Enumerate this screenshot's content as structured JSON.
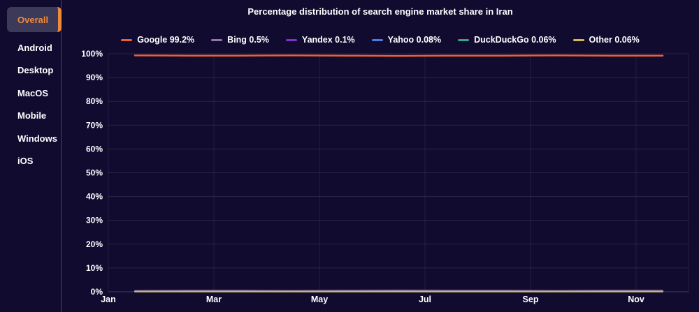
{
  "sidebar": {
    "items": [
      {
        "label": "Overall",
        "active": true
      },
      {
        "label": "Android",
        "active": false
      },
      {
        "label": "Desktop",
        "active": false
      },
      {
        "label": "MacOS",
        "active": false
      },
      {
        "label": "Mobile",
        "active": false
      },
      {
        "label": "Windows",
        "active": false
      },
      {
        "label": "iOS",
        "active": false
      }
    ]
  },
  "theme": {
    "background": "#110b30",
    "accent_orange": "#ee8a3a",
    "active_tab_bg": "#3c3959",
    "grid_color": "rgba(255,255,255,0.10)",
    "text_color": "#ffffff"
  },
  "chart_data": {
    "type": "line",
    "title": "Percentage distribution of search engine market share in Iran",
    "xlabel": "",
    "ylabel": "",
    "ylim": [
      0,
      100
    ],
    "grid": true,
    "legend_position": "top",
    "y_tick_labels": [
      "0%",
      "10%",
      "20%",
      "30%",
      "40%",
      "50%",
      "60%",
      "70%",
      "80%",
      "90%",
      "100%"
    ],
    "x_tick_labels": [
      "Jan",
      "Mar",
      "May",
      "Jul",
      "Sep",
      "Nov"
    ],
    "x": [
      "Jan",
      "Feb",
      "Mar",
      "Apr",
      "May",
      "Jun",
      "Jul",
      "Aug",
      "Sep",
      "Oct",
      "Nov"
    ],
    "series": [
      {
        "name": "Google",
        "legend_label": "Google 99.2%",
        "color": "#ee5f32",
        "values": [
          99.3,
          99.2,
          99.2,
          99.3,
          99.2,
          99.1,
          99.2,
          99.2,
          99.3,
          99.2,
          99.2
        ]
      },
      {
        "name": "Bing",
        "legend_label": "Bing 0.5%",
        "color": "#9673aa",
        "values": [
          0.4,
          0.5,
          0.5,
          0.4,
          0.5,
          0.6,
          0.5,
          0.5,
          0.4,
          0.5,
          0.5
        ]
      },
      {
        "name": "Yandex",
        "legend_label": "Yandex 0.1%",
        "color": "#7e30c8",
        "values": [
          0.1,
          0.1,
          0.1,
          0.1,
          0.1,
          0.1,
          0.1,
          0.1,
          0.1,
          0.1,
          0.1
        ]
      },
      {
        "name": "Yahoo",
        "legend_label": "Yahoo 0.08%",
        "color": "#4a7de3",
        "values": [
          0.08,
          0.08,
          0.08,
          0.08,
          0.08,
          0.08,
          0.08,
          0.08,
          0.08,
          0.08,
          0.08
        ]
      },
      {
        "name": "DuckDuckGo",
        "legend_label": "DuckDuckGo 0.06%",
        "color": "#3da089",
        "values": [
          0.06,
          0.06,
          0.06,
          0.06,
          0.06,
          0.06,
          0.06,
          0.06,
          0.06,
          0.06,
          0.06
        ]
      },
      {
        "name": "Other",
        "legend_label": "Other 0.06%",
        "color": "#d9b945",
        "values": [
          0.06,
          0.06,
          0.06,
          0.06,
          0.06,
          0.06,
          0.06,
          0.06,
          0.06,
          0.06,
          0.06
        ]
      }
    ]
  }
}
